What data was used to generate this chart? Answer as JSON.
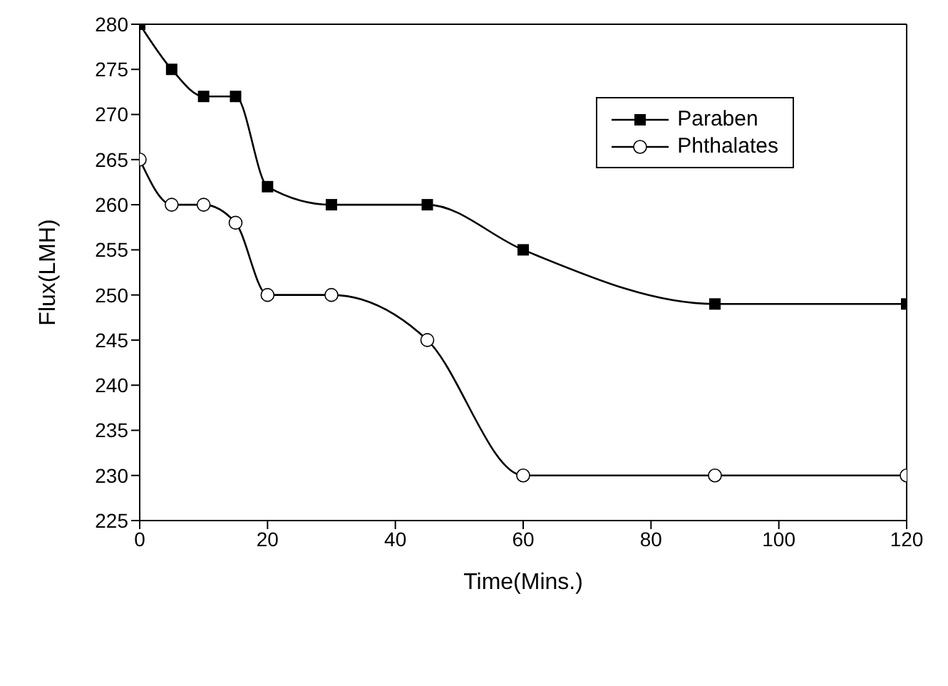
{
  "chart_data": {
    "type": "line",
    "xlabel": "Time(Mins.)",
    "ylabel": "Flux(LMH)",
    "x": [
      0,
      5,
      10,
      15,
      20,
      30,
      45,
      60,
      90,
      120
    ],
    "series": [
      {
        "name": "Paraben",
        "color": "#000000",
        "marker": "square",
        "values": [
          280,
          275,
          272,
          272,
          262,
          260,
          260,
          255,
          249,
          249
        ]
      },
      {
        "name": "Phthalates",
        "color": "#000000",
        "marker": "circle",
        "values": [
          265,
          260,
          260,
          258,
          250,
          250,
          245,
          230,
          230,
          230
        ]
      }
    ],
    "xlim": [
      0,
      120
    ],
    "xticks": [
      0,
      20,
      40,
      60,
      80,
      100,
      120
    ],
    "ylim": [
      225,
      280
    ],
    "yticks": [
      225,
      230,
      235,
      240,
      245,
      250,
      255,
      260,
      265,
      270,
      275,
      280
    ],
    "legend": "top right"
  }
}
